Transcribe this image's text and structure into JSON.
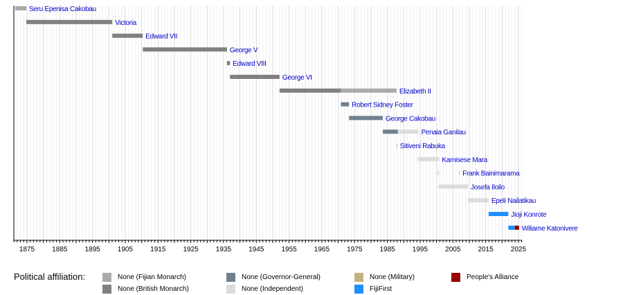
{
  "chart_data": {
    "type": "timeline",
    "xlim": [
      1871,
      2026
    ],
    "x_ticks": [
      1875,
      1885,
      1895,
      1905,
      1915,
      1925,
      1935,
      1945,
      1955,
      1965,
      1975,
      1985,
      1995,
      2005,
      2015,
      2025
    ],
    "grid": true,
    "rows": [
      {
        "name": "Seru Epenisa Cakobau",
        "segments": [
          {
            "start": 1871.4,
            "end": 1874.8,
            "group": "fijian_monarch"
          }
        ]
      },
      {
        "name": "Victoria",
        "segments": [
          {
            "start": 1874.8,
            "end": 1901.05,
            "group": "british_monarch"
          }
        ]
      },
      {
        "name": "Edward VII",
        "segments": [
          {
            "start": 1901.05,
            "end": 1910.35,
            "group": "british_monarch"
          }
        ]
      },
      {
        "name": "George V",
        "segments": [
          {
            "start": 1910.35,
            "end": 1936.05,
            "group": "british_monarch"
          }
        ]
      },
      {
        "name": "Edward VIII",
        "segments": [
          {
            "start": 1936.05,
            "end": 1936.95,
            "group": "british_monarch"
          }
        ]
      },
      {
        "name": "George VI",
        "segments": [
          {
            "start": 1936.95,
            "end": 1952.1,
            "group": "british_monarch"
          }
        ]
      },
      {
        "name": "Elizabeth II",
        "segments": [
          {
            "start": 1952.1,
            "end": 1970.8,
            "group": "british_monarch"
          },
          {
            "start": 1970.8,
            "end": 1987.8,
            "group": "fijian_monarch"
          }
        ]
      },
      {
        "name": "Robert Sidney Foster",
        "segments": [
          {
            "start": 1970.8,
            "end": 1973.3,
            "group": "governor_general"
          }
        ]
      },
      {
        "name": "George Cakobau",
        "segments": [
          {
            "start": 1973.3,
            "end": 1983.6,
            "group": "governor_general"
          }
        ]
      },
      {
        "name": "Penaia Ganilau",
        "segments": [
          {
            "start": 1983.6,
            "end": 1988.2,
            "group": "governor_general"
          },
          {
            "start": 1988.2,
            "end": 1994.5,
            "group": "independent"
          }
        ]
      },
      {
        "name": "Sitiveni Rabuka",
        "segments": [
          {
            "start": 1987.8,
            "end": 1988.0,
            "group": "military"
          }
        ]
      },
      {
        "name": "Kamisese Mara",
        "segments": [
          {
            "start": 1994.3,
            "end": 2000.8,
            "group": "independent"
          }
        ]
      },
      {
        "name": "Frank Bainimarama",
        "segments": [
          {
            "start": 2000.4,
            "end": 2000.6,
            "group": "military"
          },
          {
            "start": 2006.9,
            "end": 2007.1,
            "group": "military"
          }
        ]
      },
      {
        "name": "Josefa Iloilo",
        "segments": [
          {
            "start": 2000.6,
            "end": 2009.6,
            "group": "independent"
          }
        ]
      },
      {
        "name": "Epeli Nailatikau",
        "segments": [
          {
            "start": 2009.6,
            "end": 2015.9,
            "group": "independent"
          }
        ]
      },
      {
        "name": "Jioji Konrote",
        "segments": [
          {
            "start": 2015.9,
            "end": 2021.9,
            "group": "fijifirst"
          }
        ]
      },
      {
        "name": "Wiliame Katonivere",
        "segments": [
          {
            "start": 2021.9,
            "end": 2023.9,
            "group": "fijifirst"
          },
          {
            "start": 2023.9,
            "end": 2025.2,
            "group": "peoples_alliance"
          }
        ]
      }
    ],
    "legend": {
      "title": "Political affiliation:",
      "items": [
        {
          "key": "fijian_monarch",
          "label": "None (Fijian Monarch)",
          "color": "#aaaaaa"
        },
        {
          "key": "british_monarch",
          "label": "None (British Monarch)",
          "color": "#808080"
        },
        {
          "key": "governor_general",
          "label": "None (Governor-General)",
          "color": "#708090"
        },
        {
          "key": "independent",
          "label": "None (Independent)",
          "color": "#dcdcdc"
        },
        {
          "key": "military",
          "label": "None (Military)",
          "color": "#c2b280"
        },
        {
          "key": "fijifirst",
          "label": "FijiFirst",
          "color": "#1e90ff"
        },
        {
          "key": "peoples_alliance",
          "label": "People's Alliance",
          "color": "#990000"
        }
      ]
    },
    "label_color": "#0000cc"
  }
}
